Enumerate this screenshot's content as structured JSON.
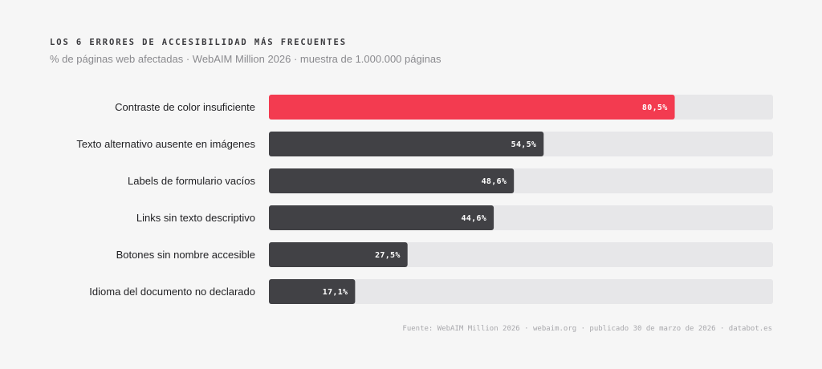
{
  "header": {
    "title": "LOS 6 ERRORES DE ACCESIBILIDAD MÁS FRECUENTES",
    "subtitle": "% de páginas web afectadas · WebAIM Million 2026 · muestra de 1.000.000 páginas"
  },
  "footer": {
    "source": "Fuente: WebAIM Million 2026 · webaim.org · publicado 30 de marzo de 2026 · databot.es"
  },
  "colors": {
    "highlight": "#f33b50",
    "bar": "#414145",
    "track": "#e7e7e9",
    "background": "#f6f6f6"
  },
  "chart_data": {
    "type": "bar",
    "orientation": "horizontal",
    "title": "LOS 6 ERRORES DE ACCESIBILIDAD MÁS FRECUENTES",
    "subtitle": "% de páginas web afectadas · WebAIM Million 2026 · muestra de 1.000.000 páginas",
    "xlim": [
      0,
      100
    ],
    "grid": false,
    "legend": "none",
    "categories": [
      "Contraste de color insuficiente",
      "Texto alternativo ausente en imágenes",
      "Labels de formulario vacíos",
      "Links sin texto descriptivo",
      "Botones sin nombre accesible",
      "Idioma del documento no declarado"
    ],
    "values": [
      80.5,
      54.5,
      48.6,
      44.6,
      27.5,
      17.1
    ],
    "value_labels": [
      "80,5%",
      "54,5%",
      "48,6%",
      "44,6%",
      "27,5%",
      "17,1%"
    ],
    "highlight_index": 0
  }
}
